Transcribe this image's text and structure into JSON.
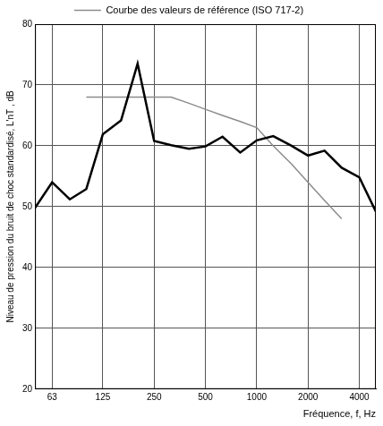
{
  "chart_data": {
    "type": "line",
    "x_label": "Fréquence, f, Hz",
    "y_label": "Niveau de pression du bruit de choc standardisé, L'nT , dB",
    "log": "x",
    "grid": true,
    "legend": "top",
    "xlim": [
      50,
      5000
    ],
    "xticks": [
      63,
      125,
      250,
      500,
      1000,
      2000,
      4000
    ],
    "ylim": [
      20,
      80
    ],
    "yticks": [
      20,
      30,
      40,
      50,
      60,
      70,
      80
    ],
    "x": [
      50,
      63,
      80,
      100,
      125,
      160,
      200,
      250,
      315,
      400,
      500,
      630,
      800,
      1000,
      1250,
      1600,
      2000,
      2500,
      3150,
      4000,
      5000
    ],
    "series": [
      {
        "color": "#000000",
        "values": [
          49.8,
          54,
          51.2,
          52.9,
          61.9,
          64.2,
          73.5,
          60.8,
          60.1,
          59.5,
          59.9,
          61.5,
          58.9,
          60.9,
          61.6,
          60,
          58.4,
          59.2,
          56.4,
          54.8,
          49.2
        ]
      },
      {
        "name": "Courbe des valeurs de référence (ISO 717-2)",
        "color": "#8c8c8c",
        "values": [
          null,
          null,
          null,
          68,
          68,
          68,
          68,
          68,
          68,
          67,
          66,
          65,
          64,
          63,
          60,
          57,
          54,
          51,
          48,
          null,
          null
        ]
      }
    ]
  }
}
